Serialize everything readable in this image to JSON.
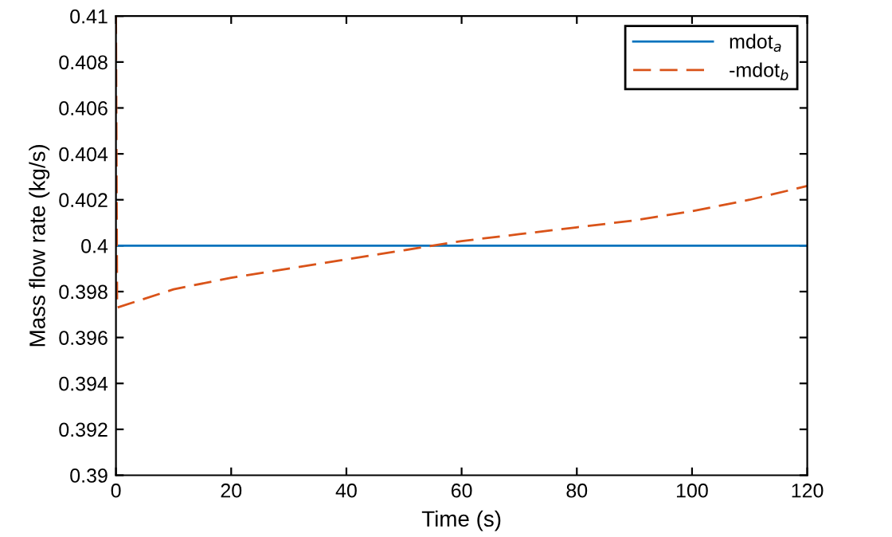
{
  "chart_data": {
    "type": "line",
    "xlabel": "Time (s)",
    "ylabel": "Mass flow rate (kg/s)",
    "xlim": [
      0,
      120
    ],
    "xticks": [
      0,
      20,
      40,
      60,
      80,
      100,
      120
    ],
    "ylim": [
      0.39,
      0.41
    ],
    "yticks": [
      0.39,
      0.392,
      0.394,
      0.396,
      0.398,
      0.4,
      0.402,
      0.404,
      0.406,
      0.408,
      0.41
    ],
    "grid": false,
    "legend": "top right",
    "series": [
      {
        "name": "mdot$_{a}$",
        "color": "#0072bd",
        "line_style": "solid",
        "x": [
          0,
          120
        ],
        "values": [
          0.4,
          0.4
        ]
      },
      {
        "name": "-mdot$_{b}$",
        "color": "#d95319",
        "line_style": "dashed",
        "x": [
          0,
          0.2,
          10,
          20,
          30,
          40,
          50,
          60,
          70,
          80,
          90,
          100,
          110,
          120
        ],
        "values": [
          0.41,
          0.3973,
          0.3981,
          0.3986,
          0.399,
          0.3994,
          0.3998,
          0.4002,
          0.4005,
          0.4008,
          0.4011,
          0.4015,
          0.402,
          0.4026
        ]
      }
    ]
  }
}
